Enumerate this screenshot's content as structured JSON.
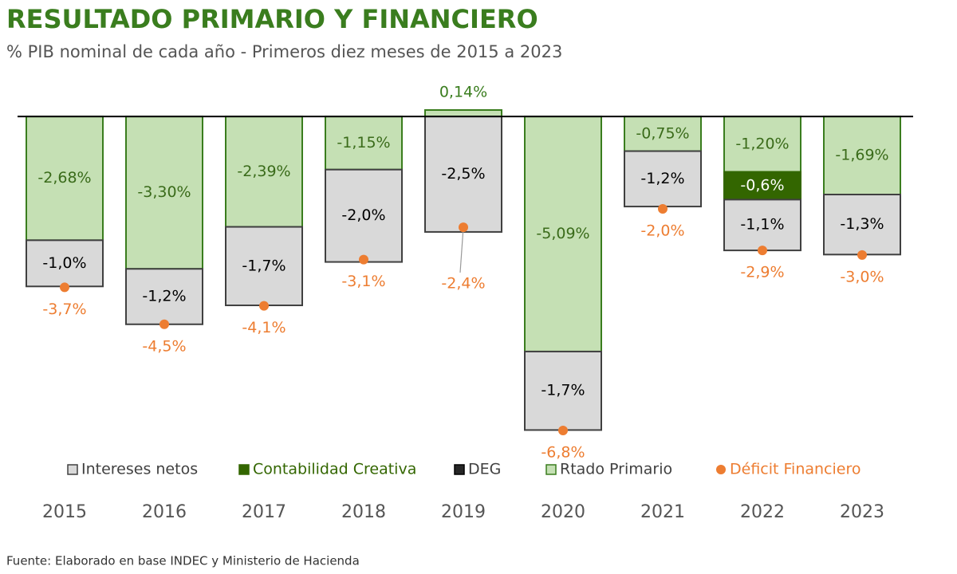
{
  "chart_data": {
    "type": "bar",
    "title": "RESULTADO PRIMARIO Y FINANCIERO",
    "subtitle": "% PIB nominal de cada año - Primeros diez meses de 2015 a 2023",
    "source": "Fuente: Elaborado en base INDEC y Ministerio de Hacienda",
    "categories": [
      "2015",
      "2016",
      "2017",
      "2018",
      "2019",
      "2020",
      "2021",
      "2022",
      "2023"
    ],
    "stacked": true,
    "series": [
      {
        "name": "Intereses netos",
        "color": "#d9d9d9",
        "stroke": "#404040",
        "label_color": "#000000",
        "values": [
          -1.0,
          -1.2,
          -1.7,
          -2.0,
          -2.5,
          -1.7,
          -1.2,
          -1.1,
          -1.3
        ],
        "value_labels": [
          "-1,0%",
          "-1,2%",
          "-1,7%",
          "-2,0%",
          "-2,5%",
          "-1,7%",
          "-1,2%",
          "-1,1%",
          "-1,3%"
        ]
      },
      {
        "name": "Contabilidad Creativa",
        "color": "#336600",
        "stroke": "#336600",
        "label_color": "#ffffff",
        "values": [
          null,
          null,
          null,
          null,
          null,
          null,
          null,
          -0.6,
          null
        ],
        "value_labels": [
          null,
          null,
          null,
          null,
          null,
          null,
          null,
          "-0,6%",
          null
        ]
      },
      {
        "name": "DEG",
        "color": "#262626",
        "stroke": "#000000",
        "label_color": "#ffffff",
        "values": [
          null,
          null,
          null,
          null,
          null,
          null,
          null,
          null,
          null
        ]
      },
      {
        "name": "Rtado Primario",
        "color": "#c5e0b4",
        "stroke": "#3a7d1e",
        "label_color": "#3a6b1a",
        "values": [
          -2.68,
          -3.3,
          -2.39,
          -1.15,
          0.14,
          -5.09,
          -0.75,
          -1.2,
          -1.69
        ],
        "value_labels": [
          "-2,68%",
          "-3,30%",
          "-2,39%",
          "-1,15%",
          "0,14%",
          "-5,09%",
          "-0,75%",
          "-1,20%",
          "-1,69%"
        ]
      },
      {
        "name": "Déficit Financiero",
        "type": "scatter",
        "color": "#ed7d31",
        "values": [
          -3.7,
          -4.5,
          -4.1,
          -3.1,
          -2.4,
          -6.8,
          -2.0,
          -2.9,
          -3.0
        ],
        "value_labels": [
          "-3,7%",
          "-4,5%",
          "-4,1%",
          "-3,1%",
          "-2,4%",
          "-6,8%",
          "-2,0%",
          "-2,9%",
          "-3,0%"
        ]
      }
    ]
  }
}
